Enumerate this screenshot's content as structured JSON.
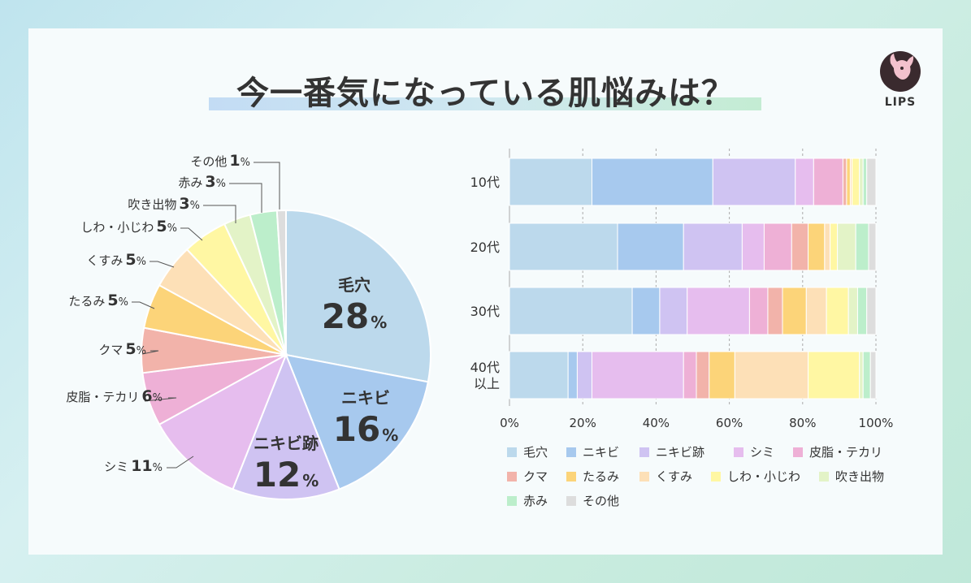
{
  "title": "今一番気になっている肌悩みは？",
  "logo": {
    "text": "LIPS",
    "icon": "deer-icon"
  },
  "chart_data": [
    {
      "type": "pie",
      "categories": [
        "毛穴",
        "ニキビ",
        "ニキビ跡",
        "シミ",
        "皮脂・テカリ",
        "クマ",
        "たるみ",
        "くすみ",
        "しわ・小じわ",
        "吹き出物",
        "赤み",
        "その他"
      ],
      "values": [
        28,
        16,
        12,
        11,
        6,
        5,
        5,
        5,
        5,
        3,
        3,
        1
      ],
      "colors": [
        "#bcd9ec",
        "#a7c9ee",
        "#cfc3f2",
        "#e6bdee",
        "#eeb0d6",
        "#f2b3aa",
        "#fcd479",
        "#fde0b7",
        "#fff7a3",
        "#e3f3c7",
        "#bceecb",
        "#dddddd"
      ],
      "inside_labels": [
        {
          "name": "毛穴",
          "value": "28",
          "unit": "%"
        },
        {
          "name": "ニキビ",
          "value": "16",
          "unit": "%"
        },
        {
          "name": "ニキビ跡",
          "value": "12",
          "unit": "%"
        }
      ],
      "outside_labels": [
        {
          "name": "シミ",
          "value": "11",
          "unit": "%"
        },
        {
          "name": "皮脂・テカリ",
          "value": "6",
          "unit": "%"
        },
        {
          "name": "クマ",
          "value": "5",
          "unit": "%"
        },
        {
          "name": "たるみ",
          "value": "5",
          "unit": "%"
        },
        {
          "name": "くすみ",
          "value": "5",
          "unit": "%"
        },
        {
          "name": "しわ・小じわ",
          "value": "5",
          "unit": "%"
        },
        {
          "name": "吹き出物",
          "value": "3",
          "unit": "%"
        },
        {
          "name": "赤み",
          "value": "3",
          "unit": "%"
        },
        {
          "name": "その他",
          "value": "1",
          "unit": "%"
        }
      ]
    },
    {
      "type": "bar",
      "stacked": true,
      "orientation": "horizontal",
      "categories": [
        [
          "10代"
        ],
        [
          "20代"
        ],
        [
          "30代"
        ],
        [
          "40代",
          "以上"
        ]
      ],
      "series": [
        {
          "name": "毛穴",
          "values": [
            22.5,
            29.5,
            33.5,
            16
          ]
        },
        {
          "name": "ニキビ",
          "values": [
            33,
            18,
            7.5,
            2.5
          ]
        },
        {
          "name": "ニキビ跡",
          "values": [
            22.5,
            16,
            7.5,
            4
          ]
        },
        {
          "name": "シミ",
          "values": [
            5,
            6,
            17,
            25
          ]
        },
        {
          "name": "皮脂・テカリ",
          "values": [
            8,
            7.5,
            5,
            3.5
          ]
        },
        {
          "name": "クマ",
          "values": [
            1,
            4.5,
            4,
            3.5
          ]
        },
        {
          "name": "たるみ",
          "values": [
            1,
            4.5,
            6.5,
            7
          ]
        },
        {
          "name": "くすみ",
          "values": [
            0.5,
            1.5,
            5.5,
            20
          ]
        },
        {
          "name": "しわ・小じわ",
          "values": [
            2,
            2,
            6,
            14
          ]
        },
        {
          "name": "吹き出物",
          "values": [
            1,
            5,
            2.5,
            1
          ]
        },
        {
          "name": "赤み",
          "values": [
            1,
            3.5,
            2.5,
            2
          ]
        },
        {
          "name": "その他",
          "values": [
            2.5,
            2,
            2.5,
            1.5
          ]
        }
      ],
      "xlim": [
        0,
        100
      ],
      "xticks": [
        "0%",
        "20%",
        "40%",
        "60%",
        "80%",
        "100%"
      ],
      "grid": "vertical-dashed",
      "legend": [
        "毛穴",
        "ニキビ",
        "ニキビ跡",
        "シミ",
        "皮脂・テカリ",
        "クマ",
        "たるみ",
        "くすみ",
        "しわ・小じわ",
        "吹き出物",
        "赤み",
        "その他"
      ],
      "legend_placement": "bottom"
    }
  ]
}
